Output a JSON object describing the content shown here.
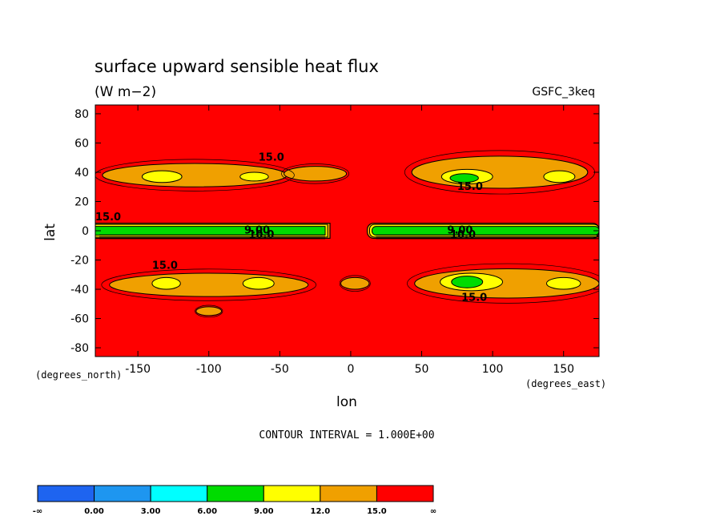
{
  "chart_data": {
    "type": "heatmap",
    "title": "surface upward sensible heat flux",
    "units": "(W m−2)",
    "dataset": "GSFC_3keq",
    "xlabel": "lon",
    "ylabel": "lat",
    "x_units": "(degrees_east)",
    "y_units": "(degrees_north)",
    "xlim": [
      -180,
      175
    ],
    "ylim": [
      -86,
      86
    ],
    "x_ticks": [
      -150,
      -100,
      -50,
      0,
      50,
      100,
      150
    ],
    "y_ticks": [
      80,
      60,
      40,
      20,
      0,
      -20,
      -40,
      -60,
      -80
    ],
    "contour_interval_text": "CONTOUR INTERVAL = 1.000E+00",
    "contour_labels": [
      {
        "text": "15.0",
        "lon": -65,
        "lat": 48
      },
      {
        "text": "15.0",
        "lon": 75,
        "lat": 28
      },
      {
        "text": "15.0",
        "lon": -180,
        "lat": 7
      },
      {
        "text": "15.0",
        "lon": -140,
        "lat": -26
      },
      {
        "text": "15.0",
        "lon": 78,
        "lat": -48
      },
      {
        "text": "9.00",
        "lon": -75,
        "lat": -2
      },
      {
        "text": "10.0",
        "lon": -72,
        "lat": -5
      },
      {
        "text": "9.00",
        "lon": 68,
        "lat": -2
      },
      {
        "text": "10.0",
        "lon": 70,
        "lat": -5
      }
    ],
    "levels": [
      {
        "label": "-∞",
        "color": "#1e64f0"
      },
      {
        "label": "0.00",
        "color": "#1e96f0"
      },
      {
        "label": "3.00",
        "color": "#00ffff"
      },
      {
        "label": "6.00",
        "color": "#00dc00"
      },
      {
        "label": "9.00",
        "color": "#ffff00"
      },
      {
        "label": "12.0",
        "color": "#f0a000"
      },
      {
        "label": "15.0",
        "color": "#ff0000"
      },
      {
        "label": "∞",
        "color": null
      }
    ],
    "colorbar_intervals": [
      {
        "from": "-∞",
        "to": "0.00",
        "color": "#1e64f0"
      },
      {
        "from": "0.00",
        "to": "3.00",
        "color": "#1e96f0"
      },
      {
        "from": "3.00",
        "to": "6.00",
        "color": "#00ffff"
      },
      {
        "from": "6.00",
        "to": "9.00",
        "color": "#00dc00"
      },
      {
        "from": "9.00",
        "to": "12.0",
        "color": "#ffff00"
      },
      {
        "from": "12.0",
        "to": "15.0",
        "color": "#f0a000"
      },
      {
        "from": "15.0",
        "to": "∞",
        "color": "#ff0000"
      }
    ],
    "regions": [
      {
        "kind": "orange",
        "lon": -110,
        "lat": 38,
        "rlon": 65,
        "rlat": 8
      },
      {
        "kind": "orange",
        "lon": -25,
        "lat": 39,
        "rlon": 22,
        "rlat": 5
      },
      {
        "kind": "yellow",
        "lon": -133,
        "lat": 37,
        "rlon": 14,
        "rlat": 4
      },
      {
        "kind": "yellow",
        "lon": -68,
        "lat": 37,
        "rlon": 10,
        "rlat": 3
      },
      {
        "kind": "orange",
        "lon": 105,
        "lat": 40,
        "rlon": 62,
        "rlat": 11
      },
      {
        "kind": "yellow",
        "lon": 82,
        "lat": 37,
        "rlon": 18,
        "rlat": 5
      },
      {
        "kind": "green",
        "lon": 80,
        "lat": 36,
        "rlon": 10,
        "rlat": 3
      },
      {
        "kind": "yellow",
        "lon": 147,
        "lat": 37,
        "rlon": 11,
        "rlat": 4
      },
      {
        "kind": "orange",
        "lon": -100,
        "lat": -37,
        "rlon": 70,
        "rlat": 8
      },
      {
        "kind": "yellow",
        "lon": -130,
        "lat": -36,
        "rlon": 10,
        "rlat": 4
      },
      {
        "kind": "yellow",
        "lon": -65,
        "lat": -36,
        "rlon": 11,
        "rlat": 4
      },
      {
        "kind": "orange",
        "lon": 3,
        "lat": -36,
        "rlon": 10,
        "rlat": 4
      },
      {
        "kind": "orange",
        "lon": 110,
        "lat": -36,
        "rlon": 65,
        "rlat": 10
      },
      {
        "kind": "yellow",
        "lon": 85,
        "lat": -35,
        "rlon": 22,
        "rlat": 6
      },
      {
        "kind": "green",
        "lon": 82,
        "lat": -35,
        "rlon": 11,
        "rlat": 4
      },
      {
        "kind": "yellow",
        "lon": 150,
        "lat": -36,
        "rlon": 12,
        "rlat": 4
      },
      {
        "kind": "orange",
        "lon": -100,
        "lat": -55,
        "rlon": 9,
        "rlat": 3
      },
      {
        "kind": "green-band",
        "lon_from": -180,
        "lon_to": -18,
        "lat": 0,
        "rlat": 3.5
      },
      {
        "kind": "green-band",
        "lon_from": 15,
        "lon_to": 175,
        "lat": 0,
        "rlat": 3.5
      }
    ]
  }
}
